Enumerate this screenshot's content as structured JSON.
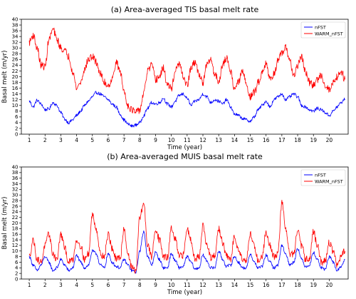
{
  "chart_data": [
    {
      "type": "line",
      "title": "(a) Area-averaged TIS basal melt rate",
      "xlabel": "Time (year)",
      "ylabel": "Basal melt (m/yr)",
      "xlim": [
        0.5,
        21.2
      ],
      "ylim": [
        0,
        40
      ],
      "xticks": [
        1,
        2,
        3,
        4,
        5,
        6,
        7,
        8,
        9,
        10,
        11,
        12,
        13,
        14,
        15,
        16,
        17,
        18,
        19,
        20
      ],
      "yticks": [
        0,
        2,
        4,
        6,
        8,
        10,
        12,
        14,
        16,
        18,
        20,
        22,
        24,
        26,
        28,
        30,
        32,
        34,
        36,
        38,
        40
      ],
      "grid": false,
      "legend": "top-right",
      "series": [
        {
          "name": "nFST",
          "color": "#0000ff",
          "x": [
            1.0,
            1.25,
            1.5,
            1.75,
            2.0,
            2.25,
            2.5,
            2.75,
            3.0,
            3.25,
            3.5,
            3.75,
            4.0,
            4.25,
            4.5,
            4.75,
            5.0,
            5.25,
            5.5,
            5.75,
            6.0,
            6.25,
            6.5,
            6.75,
            7.0,
            7.25,
            7.5,
            7.75,
            8.0,
            8.25,
            8.5,
            8.75,
            9.0,
            9.25,
            9.5,
            9.75,
            10.0,
            10.25,
            10.5,
            10.75,
            11.0,
            11.25,
            11.5,
            11.75,
            12.0,
            12.25,
            12.5,
            12.75,
            13.0,
            13.25,
            13.5,
            13.75,
            14.0,
            14.25,
            14.5,
            14.75,
            15.0,
            15.25,
            15.5,
            15.75,
            16.0,
            16.25,
            16.5,
            16.75,
            17.0,
            17.25,
            17.5,
            17.75,
            18.0,
            18.25,
            18.5,
            18.75,
            19.0,
            19.25,
            19.5,
            19.75,
            20.0,
            20.25,
            20.5,
            20.75,
            21.0
          ],
          "values": [
            11.5,
            9.5,
            11.8,
            10.5,
            8.5,
            8.8,
            11.0,
            10.0,
            7.5,
            5.2,
            4.0,
            5.0,
            6.5,
            8.0,
            10.0,
            11.5,
            13.0,
            14.5,
            14.0,
            13.0,
            12.0,
            10.5,
            9.5,
            7.0,
            5.0,
            3.5,
            2.8,
            3.2,
            4.0,
            6.5,
            9.0,
            11.0,
            10.5,
            11.0,
            12.5,
            10.5,
            9.5,
            11.5,
            13.5,
            14.0,
            12.5,
            10.0,
            11.5,
            12.0,
            14.0,
            13.0,
            11.0,
            12.0,
            11.5,
            10.5,
            12.0,
            9.5,
            7.0,
            6.5,
            5.5,
            5.0,
            4.5,
            6.0,
            8.5,
            10.0,
            11.5,
            9.5,
            12.0,
            13.0,
            14.0,
            12.0,
            13.0,
            14.0,
            13.0,
            10.0,
            9.5,
            8.5,
            8.0,
            9.0,
            8.5,
            7.5,
            6.5,
            8.0,
            9.5,
            11.0,
            12.2
          ]
        },
        {
          "name": "WARM_nFST",
          "color": "#ff0000",
          "x": [
            1.0,
            1.25,
            1.5,
            1.75,
            2.0,
            2.25,
            2.5,
            2.75,
            3.0,
            3.25,
            3.5,
            3.75,
            4.0,
            4.25,
            4.5,
            4.75,
            5.0,
            5.25,
            5.5,
            5.75,
            6.0,
            6.25,
            6.5,
            6.75,
            7.0,
            7.25,
            7.5,
            7.75,
            8.0,
            8.25,
            8.5,
            8.75,
            9.0,
            9.25,
            9.5,
            9.75,
            10.0,
            10.25,
            10.5,
            10.75,
            11.0,
            11.25,
            11.5,
            11.75,
            12.0,
            12.25,
            12.5,
            12.75,
            13.0,
            13.25,
            13.5,
            13.75,
            14.0,
            14.25,
            14.5,
            14.75,
            15.0,
            15.25,
            15.5,
            15.75,
            16.0,
            16.25,
            16.5,
            16.75,
            17.0,
            17.25,
            17.5,
            17.75,
            18.0,
            18.25,
            18.5,
            18.75,
            19.0,
            19.25,
            19.5,
            19.75,
            20.0,
            20.25,
            20.5,
            20.75,
            21.0
          ],
          "values": [
            32.0,
            34.5,
            30.0,
            24.0,
            23.5,
            33.0,
            36.5,
            33.0,
            30.0,
            29.0,
            27.0,
            22.0,
            16.0,
            18.0,
            22.5,
            26.0,
            27.0,
            25.0,
            21.0,
            18.0,
            17.0,
            19.0,
            25.0,
            22.0,
            15.0,
            10.0,
            8.5,
            7.5,
            8.5,
            14.0,
            22.0,
            24.0,
            19.0,
            20.0,
            23.0,
            17.0,
            16.0,
            22.0,
            24.5,
            20.0,
            17.0,
            23.0,
            25.0,
            21.0,
            18.0,
            24.0,
            26.0,
            21.0,
            18.5,
            24.0,
            26.5,
            22.0,
            16.0,
            18.0,
            22.0,
            17.5,
            13.0,
            14.5,
            18.0,
            21.5,
            25.0,
            19.0,
            21.0,
            25.5,
            28.0,
            30.0,
            26.0,
            20.0,
            24.0,
            27.0,
            21.5,
            18.0,
            17.0,
            19.0,
            20.5,
            17.0,
            15.5,
            18.0,
            20.0,
            22.0,
            19.0
          ]
        }
      ]
    },
    {
      "type": "line",
      "title": "(b) Area-averaged MUIS basal melt rate",
      "xlabel": "Time (year)",
      "ylabel": "Basal melt (m/yr)",
      "xlim": [
        0.5,
        21.2
      ],
      "ylim": [
        0,
        40
      ],
      "xticks": [
        1,
        2,
        3,
        4,
        5,
        6,
        7,
        8,
        9,
        10,
        11,
        12,
        13,
        14,
        15,
        16,
        17,
        18,
        19,
        20
      ],
      "yticks": [
        0,
        2,
        4,
        6,
        8,
        10,
        12,
        14,
        16,
        18,
        20,
        22,
        24,
        26,
        28,
        30,
        32,
        34,
        36,
        38,
        40
      ],
      "grid": false,
      "legend": "top-right",
      "series": [
        {
          "name": "nFST",
          "color": "#0000ff",
          "x": [
            1.0,
            1.25,
            1.5,
            1.75,
            2.0,
            2.25,
            2.5,
            2.75,
            3.0,
            3.25,
            3.5,
            3.75,
            4.0,
            4.25,
            4.5,
            4.75,
            5.0,
            5.25,
            5.5,
            5.75,
            6.0,
            6.25,
            6.5,
            6.75,
            7.0,
            7.25,
            7.5,
            7.75,
            8.0,
            8.25,
            8.5,
            8.75,
            9.0,
            9.25,
            9.5,
            9.75,
            10.0,
            10.25,
            10.5,
            10.75,
            11.0,
            11.25,
            11.5,
            11.75,
            12.0,
            12.25,
            12.5,
            12.75,
            13.0,
            13.25,
            13.5,
            13.75,
            14.0,
            14.25,
            14.5,
            14.75,
            15.0,
            15.25,
            15.5,
            15.75,
            16.0,
            16.25,
            16.5,
            16.75,
            17.0,
            17.25,
            17.5,
            17.75,
            18.0,
            18.25,
            18.5,
            18.75,
            19.0,
            19.25,
            19.5,
            19.75,
            20.0,
            20.25,
            20.5,
            20.75,
            21.0
          ],
          "values": [
            8.0,
            5.0,
            3.0,
            5.0,
            8.0,
            6.0,
            3.0,
            4.0,
            7.0,
            5.0,
            3.0,
            4.0,
            8.5,
            6.0,
            4.0,
            5.0,
            10.0,
            9.0,
            5.0,
            4.0,
            9.0,
            6.0,
            4.5,
            4.0,
            7.0,
            5.0,
            3.0,
            2.5,
            10.0,
            17.0,
            8.0,
            5.0,
            9.5,
            7.0,
            4.0,
            4.0,
            9.0,
            6.5,
            4.0,
            4.5,
            8.0,
            6.0,
            3.5,
            4.0,
            8.5,
            6.5,
            4.0,
            4.0,
            10.0,
            7.0,
            4.5,
            5.0,
            8.0,
            6.0,
            4.0,
            4.0,
            9.0,
            6.0,
            4.0,
            4.5,
            8.5,
            6.0,
            4.0,
            5.0,
            12.0,
            9.0,
            5.0,
            6.0,
            11.0,
            7.0,
            4.5,
            5.0,
            9.5,
            7.0,
            4.0,
            3.5,
            8.0,
            6.0,
            3.0,
            4.5,
            7.0
          ]
        },
        {
          "name": "WARM_nFST",
          "color": "#ff0000",
          "x": [
            1.0,
            1.25,
            1.5,
            1.75,
            2.0,
            2.25,
            2.5,
            2.75,
            3.0,
            3.25,
            3.5,
            3.75,
            4.0,
            4.25,
            4.5,
            4.75,
            5.0,
            5.25,
            5.5,
            5.75,
            6.0,
            6.25,
            6.5,
            6.75,
            7.0,
            7.25,
            7.5,
            7.75,
            8.0,
            8.25,
            8.5,
            8.75,
            9.0,
            9.25,
            9.5,
            9.75,
            10.0,
            10.25,
            10.5,
            10.75,
            11.0,
            11.25,
            11.5,
            11.75,
            12.0,
            12.25,
            12.5,
            12.75,
            13.0,
            13.25,
            13.5,
            13.75,
            14.0,
            14.25,
            14.5,
            14.75,
            15.0,
            15.25,
            15.5,
            15.75,
            16.0,
            16.25,
            16.5,
            16.75,
            17.0,
            17.25,
            17.5,
            17.75,
            18.0,
            18.25,
            18.5,
            18.75,
            19.0,
            19.25,
            19.5,
            19.75,
            20.0,
            20.25,
            20.5,
            20.75,
            21.0
          ],
          "values": [
            8.0,
            14.0,
            7.0,
            6.0,
            12.0,
            16.0,
            9.0,
            7.0,
            16.0,
            11.0,
            6.0,
            7.0,
            14.0,
            12.0,
            7.0,
            9.0,
            23.0,
            18.0,
            9.0,
            8.0,
            16.0,
            11.0,
            7.0,
            7.5,
            18.0,
            9.0,
            4.0,
            3.0,
            22.0,
            27.0,
            12.0,
            8.0,
            18.0,
            14.0,
            8.0,
            7.5,
            18.0,
            14.0,
            8.0,
            8.5,
            18.0,
            14.0,
            7.0,
            8.0,
            19.0,
            12.0,
            7.5,
            8.0,
            18.0,
            13.0,
            8.0,
            7.0,
            15.0,
            11.0,
            7.0,
            7.0,
            16.0,
            12.0,
            6.5,
            8.0,
            17.0,
            12.0,
            8.0,
            9.0,
            27.5,
            18.0,
            9.0,
            9.0,
            17.0,
            12.0,
            7.0,
            7.5,
            17.0,
            12.0,
            6.0,
            6.5,
            13.0,
            10.0,
            5.0,
            8.0,
            10.0
          ]
        }
      ]
    }
  ]
}
